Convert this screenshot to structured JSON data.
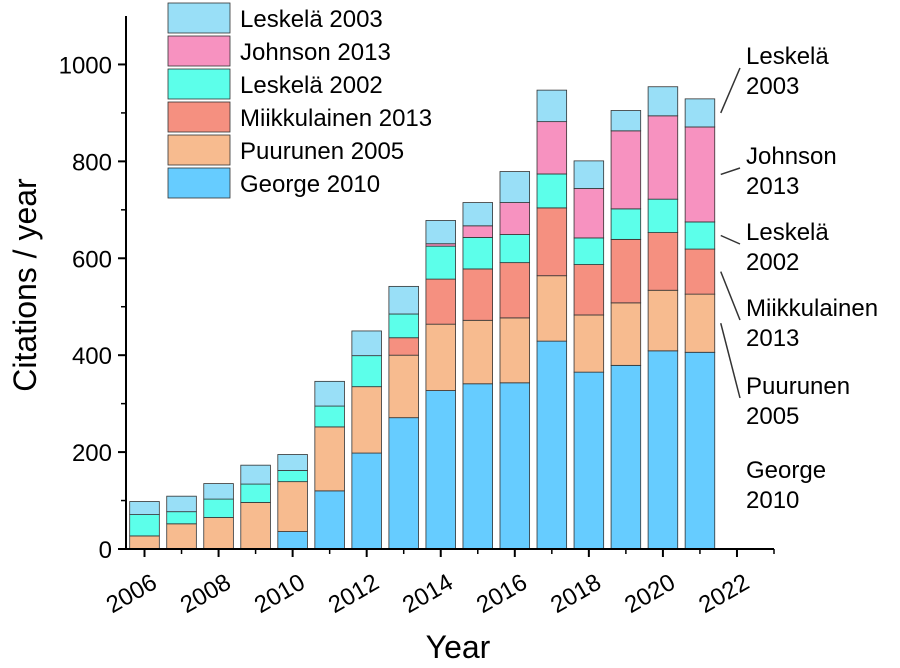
{
  "chart_data": {
    "type": "bar",
    "stacked": true,
    "xlabel": "Year",
    "ylabel": "Citations / year",
    "ylim": [
      0,
      1100
    ],
    "xlim": [
      2005.5,
      2023
    ],
    "yticks": [
      0,
      200,
      400,
      600,
      800,
      1000
    ],
    "xticks": [
      2006,
      2008,
      2010,
      2012,
      2014,
      2016,
      2018,
      2020,
      2022
    ],
    "x": [
      2006,
      2007,
      2008,
      2009,
      2010,
      2011,
      2012,
      2013,
      2014,
      2015,
      2016,
      2017,
      2018,
      2019,
      2020,
      2021
    ],
    "legend_position": "top-left",
    "series": [
      {
        "name": "George 2010",
        "color": "#66ccff",
        "values": [
          0,
          0,
          0,
          0,
          36,
          120,
          198,
          271,
          327,
          341,
          343,
          429,
          365,
          379,
          409,
          406
        ]
      },
      {
        "name": "Puurunen 2005",
        "color": "#f7bb8f",
        "values": [
          27,
          52,
          65,
          96,
          103,
          132,
          137,
          129,
          137,
          131,
          134,
          135,
          118,
          129,
          125,
          120
        ]
      },
      {
        "name": "Miikkulainen 2013",
        "color": "#f59080",
        "values": [
          0,
          0,
          0,
          0,
          0,
          0,
          0,
          36,
          93,
          106,
          114,
          140,
          104,
          131,
          119,
          93
        ]
      },
      {
        "name": "Leskelä 2002",
        "color": "#5cffea",
        "values": [
          44,
          25,
          38,
          38,
          23,
          43,
          64,
          49,
          68,
          65,
          58,
          70,
          55,
          63,
          69,
          56
        ]
      },
      {
        "name": "Johnson 2013",
        "color": "#f792c0",
        "values": [
          0,
          0,
          0,
          0,
          0,
          0,
          0,
          0,
          5,
          24,
          66,
          108,
          102,
          161,
          172,
          196
        ]
      },
      {
        "name": "Leskelä 2003",
        "color": "#99dff7",
        "values": [
          27,
          32,
          32,
          39,
          33,
          51,
          51,
          57,
          48,
          48,
          64,
          65,
          57,
          42,
          60,
          58
        ]
      }
    ],
    "legend_order": [
      "Leskelä 2003",
      "Johnson 2013",
      "Leskelä 2002",
      "Miikkulainen 2013",
      "Puurunen 2005",
      "George 2010"
    ],
    "annotations": [
      {
        "series": "Leskelä 2003",
        "lines": [
          "Leskelä",
          "2003"
        ]
      },
      {
        "series": "Johnson 2013",
        "lines": [
          "Johnson",
          "2013"
        ]
      },
      {
        "series": "Leskelä 2002",
        "lines": [
          "Leskelä",
          "2002"
        ]
      },
      {
        "series": "Miikkulainen 2013",
        "lines": [
          "Miikkulainen",
          "2013"
        ]
      },
      {
        "series": "Puurunen 2005",
        "lines": [
          "Puurunen",
          "2005"
        ]
      },
      {
        "series": "George 2010",
        "lines": [
          "George",
          "2010"
        ]
      }
    ]
  }
}
